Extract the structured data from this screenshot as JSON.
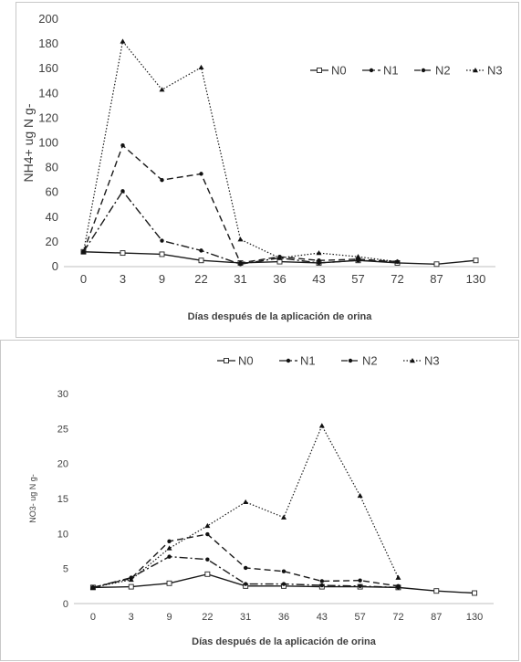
{
  "chart_data": [
    {
      "type": "line",
      "title": "",
      "ylabel": "NH4+ ug N g-",
      "xlabel": "Días después de la aplicación de orina",
      "categories": [
        "0",
        "3",
        "9",
        "22",
        "31",
        "36",
        "43",
        "57",
        "72",
        "87",
        "130"
      ],
      "ylim": [
        0,
        200
      ],
      "yticks": [
        0,
        20,
        40,
        60,
        80,
        100,
        120,
        140,
        160,
        180,
        200
      ],
      "grid": false,
      "legend_position": "top-right",
      "series": [
        {
          "name": "N0",
          "style": "solid-open-square",
          "values": [
            12,
            11,
            10,
            5,
            3,
            4,
            3,
            5,
            3,
            2,
            5
          ]
        },
        {
          "name": "N1",
          "style": "dash-dot-circle",
          "values": [
            12,
            61,
            21,
            13,
            2,
            7,
            3,
            5,
            4,
            null,
            null
          ]
        },
        {
          "name": "N2",
          "style": "dashed-circle",
          "values": [
            12,
            98,
            70,
            75,
            3,
            8,
            5,
            6,
            4,
            null,
            null
          ]
        },
        {
          "name": "N3",
          "style": "dotted-triangle",
          "values": [
            12,
            182,
            143,
            161,
            22,
            7,
            11,
            8,
            4,
            null,
            null
          ]
        }
      ]
    },
    {
      "type": "line",
      "title": "",
      "ylabel": "NO3- ug N g-",
      "xlabel": "Días después de la aplicación de orina",
      "categories": [
        "0",
        "3",
        "9",
        "22",
        "31",
        "36",
        "43",
        "57",
        "72",
        "87",
        "130"
      ],
      "ylim": [
        0,
        30
      ],
      "yticks": [
        0,
        5,
        10,
        15,
        20,
        25,
        30
      ],
      "grid": false,
      "legend_position": "top",
      "series": [
        {
          "name": "N0",
          "style": "solid-open-square",
          "values": [
            2.3,
            2.4,
            2.9,
            4.2,
            2.5,
            2.5,
            2.4,
            2.4,
            2.3,
            1.8,
            1.5
          ]
        },
        {
          "name": "N1",
          "style": "dash-dot-circle",
          "values": [
            2.3,
            3.7,
            6.7,
            6.3,
            2.8,
            2.8,
            2.6,
            2.5,
            2.3,
            null,
            null
          ]
        },
        {
          "name": "N2",
          "style": "dashed-circle",
          "values": [
            2.3,
            3.6,
            8.9,
            9.9,
            5.1,
            4.6,
            3.2,
            3.3,
            2.5,
            null,
            null
          ]
        },
        {
          "name": "N3",
          "style": "dotted-triangle",
          "values": [
            2.3,
            3.4,
            7.9,
            11.1,
            14.5,
            12.3,
            25.4,
            15.4,
            3.7,
            null,
            null
          ]
        }
      ]
    }
  ]
}
